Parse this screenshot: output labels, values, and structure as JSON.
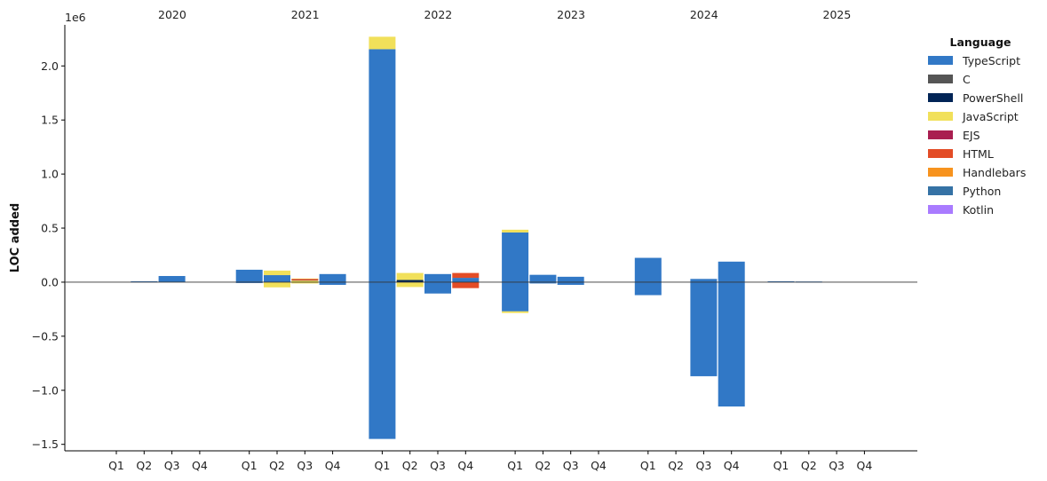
{
  "chart_data": {
    "type": "bar",
    "stacked": true,
    "ylabel": "LOC added",
    "y_offset_label": "1e6",
    "ylim": [
      -1.56,
      2.38
    ],
    "y_ticks": [
      -1.5,
      -1.0,
      -0.5,
      0.0,
      0.5,
      1.0,
      1.5,
      2.0
    ],
    "y_tick_labels": [
      "−1.5",
      "−1.0",
      "−0.5",
      "0.0",
      "0.5",
      "1.0",
      "1.5",
      "2.0"
    ],
    "years": [
      "2020",
      "2021",
      "2022",
      "2023",
      "2024",
      "2025"
    ],
    "quarters": [
      "Q1",
      "Q2",
      "Q3",
      "Q4"
    ],
    "legend_title": "Language",
    "legend_position": "outside-right-top",
    "grid": false,
    "series": [
      {
        "name": "TypeScript",
        "color": "#3178c6"
      },
      {
        "name": "C",
        "color": "#555555"
      },
      {
        "name": "PowerShell",
        "color": "#012456"
      },
      {
        "name": "JavaScript",
        "color": "#f1e05a"
      },
      {
        "name": "EJS",
        "color": "#a91e50"
      },
      {
        "name": "HTML",
        "color": "#e34c26"
      },
      {
        "name": "Handlebars",
        "color": "#f7931e"
      },
      {
        "name": "Python",
        "color": "#3572a5"
      },
      {
        "name": "Kotlin",
        "color": "#a97bff"
      }
    ],
    "bars": [
      {
        "year": "2020",
        "quarter": "Q2",
        "segments": [
          {
            "series": "TypeScript",
            "from": 0,
            "to": 0.008
          }
        ]
      },
      {
        "year": "2020",
        "quarter": "Q3",
        "segments": [
          {
            "series": "TypeScript",
            "from": 0,
            "to": 0.057
          }
        ]
      },
      {
        "year": "2021",
        "quarter": "Q1",
        "segments": [
          {
            "series": "TypeScript",
            "from": 0,
            "to": 0.115
          },
          {
            "series": "TypeScript",
            "from": 0,
            "to": -0.005
          }
        ]
      },
      {
        "year": "2021",
        "quarter": "Q2",
        "segments": [
          {
            "series": "TypeScript",
            "from": 0,
            "to": 0.065
          },
          {
            "series": "JavaScript",
            "from": 0.065,
            "to": 0.107
          },
          {
            "series": "JavaScript",
            "from": 0,
            "to": -0.048
          }
        ]
      },
      {
        "year": "2021",
        "quarter": "Q3",
        "segments": [
          {
            "series": "JavaScript",
            "from": 0,
            "to": 0.018
          },
          {
            "series": "EJS",
            "from": 0.018,
            "to": 0.025
          },
          {
            "series": "Handlebars",
            "from": 0.025,
            "to": 0.033
          },
          {
            "series": "JavaScript",
            "from": 0,
            "to": -0.012
          }
        ]
      },
      {
        "year": "2021",
        "quarter": "Q4",
        "segments": [
          {
            "series": "TypeScript",
            "from": 0,
            "to": 0.075
          },
          {
            "series": "TypeScript",
            "from": 0,
            "to": -0.025
          }
        ]
      },
      {
        "year": "2022",
        "quarter": "Q1",
        "segments": [
          {
            "series": "TypeScript",
            "from": 0,
            "to": 2.155
          },
          {
            "series": "JavaScript",
            "from": 2.155,
            "to": 2.27
          },
          {
            "series": "TypeScript",
            "from": 0,
            "to": -1.45
          }
        ]
      },
      {
        "year": "2022",
        "quarter": "Q2",
        "segments": [
          {
            "series": "PowerShell",
            "from": 0,
            "to": 0.02
          },
          {
            "series": "JavaScript",
            "from": 0.02,
            "to": 0.085
          },
          {
            "series": "JavaScript",
            "from": 0,
            "to": -0.045
          }
        ]
      },
      {
        "year": "2022",
        "quarter": "Q3",
        "segments": [
          {
            "series": "TypeScript",
            "from": 0,
            "to": 0.075
          },
          {
            "series": "TypeScript",
            "from": 0,
            "to": -0.105
          }
        ]
      },
      {
        "year": "2022",
        "quarter": "Q4",
        "segments": [
          {
            "series": "TypeScript",
            "from": 0,
            "to": 0.04
          },
          {
            "series": "HTML",
            "from": 0.04,
            "to": 0.085
          },
          {
            "series": "HTML",
            "from": 0,
            "to": -0.055
          }
        ]
      },
      {
        "year": "2023",
        "quarter": "Q1",
        "segments": [
          {
            "series": "TypeScript",
            "from": 0,
            "to": 0.46
          },
          {
            "series": "JavaScript",
            "from": 0.46,
            "to": 0.485
          },
          {
            "series": "TypeScript",
            "from": 0,
            "to": -0.27
          },
          {
            "series": "JavaScript",
            "from": -0.27,
            "to": -0.285
          }
        ]
      },
      {
        "year": "2023",
        "quarter": "Q2",
        "segments": [
          {
            "series": "TypeScript",
            "from": 0,
            "to": 0.068
          },
          {
            "series": "TypeScript",
            "from": 0,
            "to": -0.012
          }
        ]
      },
      {
        "year": "2023",
        "quarter": "Q3",
        "segments": [
          {
            "series": "TypeScript",
            "from": 0,
            "to": 0.05
          },
          {
            "series": "TypeScript",
            "from": 0,
            "to": -0.025
          }
        ]
      },
      {
        "year": "2024",
        "quarter": "Q1",
        "segments": [
          {
            "series": "TypeScript",
            "from": 0,
            "to": 0.225
          },
          {
            "series": "TypeScript",
            "from": 0,
            "to": -0.12
          }
        ]
      },
      {
        "year": "2024",
        "quarter": "Q3",
        "segments": [
          {
            "series": "TypeScript",
            "from": 0,
            "to": 0.03
          },
          {
            "series": "TypeScript",
            "from": 0,
            "to": -0.87
          }
        ]
      },
      {
        "year": "2024",
        "quarter": "Q4",
        "segments": [
          {
            "series": "TypeScript",
            "from": 0,
            "to": 0.19
          },
          {
            "series": "TypeScript",
            "from": 0,
            "to": -1.15
          }
        ]
      },
      {
        "year": "2025",
        "quarter": "Q1",
        "segments": [
          {
            "series": "TypeScript",
            "from": 0,
            "to": 0.008
          }
        ]
      },
      {
        "year": "2025",
        "quarter": "Q2",
        "segments": [
          {
            "series": "TypeScript",
            "from": 0,
            "to": 0.006
          }
        ]
      }
    ]
  }
}
